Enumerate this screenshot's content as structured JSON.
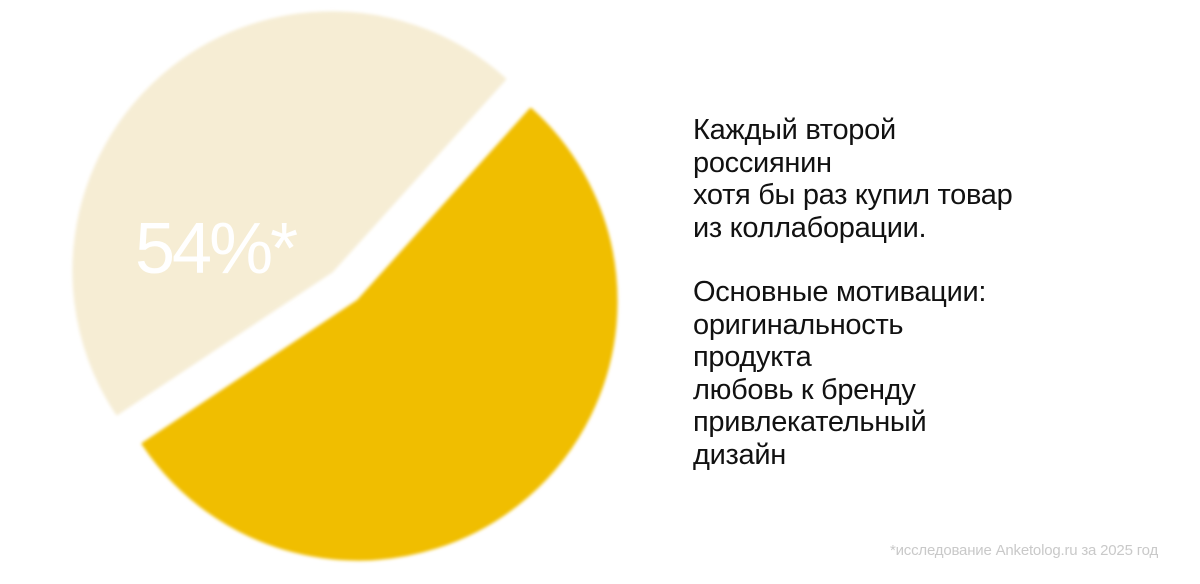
{
  "chart_data": {
    "type": "pie",
    "slices": [
      {
        "label": "54%*",
        "value": 54,
        "color": "#F0BE00"
      },
      {
        "label": "",
        "value": 46,
        "color": "#F6EDD4"
      }
    ]
  },
  "text": {
    "paragraph1": "Каждый второй\nроссиянин\nхотя бы раз купил товар\nиз коллаборации.",
    "paragraph2": "Основные мотивации:\nоригинальность\nпродукта\nлюбовь к бренду\nпривлекательный\nдизайн"
  },
  "footnote": "*исследование Anketolog.ru за 2025 год"
}
